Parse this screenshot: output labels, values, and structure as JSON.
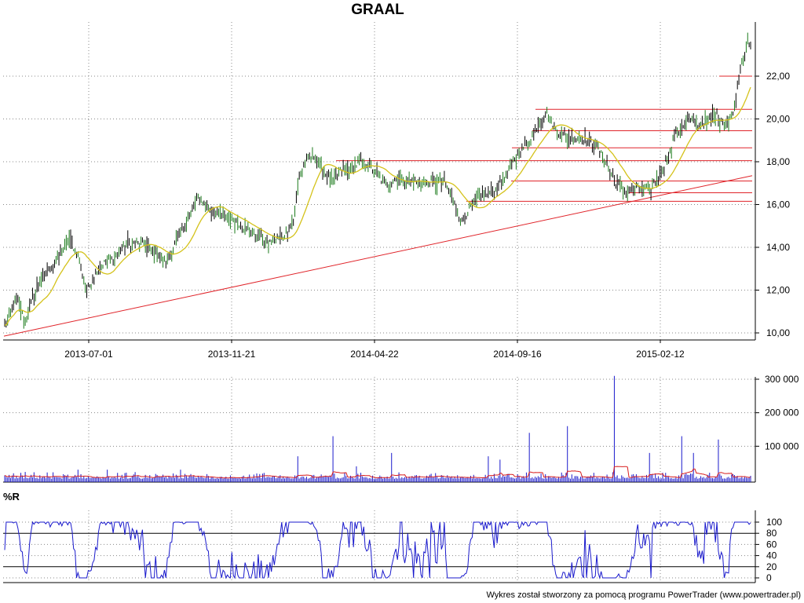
{
  "title": "GRAAL",
  "credit": "Wykres został stworzony za pomocą programu PowerTrader (www.powertrader.pl)",
  "colors": {
    "price": "#000000",
    "ma": "#d4c21a",
    "levels": "#e0242a",
    "volume": "#1a1acc",
    "volume_ma": "#d81e1e",
    "wr": "#1a1acc",
    "grid": "#888888"
  },
  "chart_data": [
    {
      "type": "line",
      "x_ticks": [
        "2013-07-01",
        "2013-11-21",
        "2014-04-22",
        "2014-09-16",
        "2015-02-12"
      ],
      "y_ticks": [
        "10,00",
        "12,00",
        "14,00",
        "16,00",
        "18,00",
        "20,00",
        "22,00"
      ],
      "ylim": [
        9.9,
        23.8
      ],
      "close_anchors": [
        [
          0,
          10.3
        ],
        [
          8,
          11.6
        ],
        [
          14,
          10.5
        ],
        [
          22,
          12.2
        ],
        [
          34,
          13.3
        ],
        [
          44,
          14.4
        ],
        [
          50,
          13.6
        ],
        [
          56,
          11.9
        ],
        [
          64,
          13.1
        ],
        [
          74,
          13.5
        ],
        [
          84,
          14.2
        ],
        [
          96,
          14.1
        ],
        [
          104,
          13.7
        ],
        [
          110,
          13.2
        ],
        [
          118,
          14.4
        ],
        [
          124,
          15.2
        ],
        [
          132,
          16.3
        ],
        [
          140,
          15.8
        ],
        [
          148,
          15.5
        ],
        [
          156,
          15.3
        ],
        [
          164,
          14.9
        ],
        [
          172,
          14.6
        ],
        [
          180,
          14.2
        ],
        [
          190,
          14.5
        ],
        [
          197,
          15.3
        ],
        [
          201,
          17.3
        ],
        [
          206,
          18.1
        ],
        [
          212,
          18.3
        ],
        [
          218,
          17.5
        ],
        [
          224,
          17.1
        ],
        [
          230,
          17.6
        ],
        [
          236,
          17.6
        ],
        [
          242,
          18.0
        ],
        [
          248,
          17.9
        ],
        [
          254,
          17.4
        ],
        [
          260,
          16.9
        ],
        [
          266,
          17.2
        ],
        [
          276,
          17.1
        ],
        [
          286,
          17.0
        ],
        [
          300,
          17.1
        ],
        [
          306,
          16.2
        ],
        [
          312,
          15.2
        ],
        [
          318,
          15.9
        ],
        [
          326,
          16.4
        ],
        [
          336,
          16.7
        ],
        [
          344,
          17.6
        ],
        [
          350,
          18.4
        ],
        [
          358,
          18.9
        ],
        [
          364,
          19.8
        ],
        [
          370,
          20.3
        ],
        [
          376,
          19.5
        ],
        [
          384,
          19.1
        ],
        [
          394,
          19.1
        ],
        [
          404,
          18.7
        ],
        [
          412,
          17.7
        ],
        [
          418,
          16.9
        ],
        [
          424,
          16.6
        ],
        [
          432,
          16.8
        ],
        [
          440,
          16.7
        ],
        [
          446,
          17.3
        ],
        [
          452,
          18.1
        ],
        [
          458,
          19.3
        ],
        [
          466,
          19.9
        ],
        [
          474,
          19.7
        ],
        [
          484,
          20.2
        ],
        [
          494,
          19.8
        ],
        [
          498,
          20.6
        ],
        [
          502,
          22.5
        ],
        [
          506,
          23.4
        ]
      ],
      "volume_ticks": [
        "100 000",
        "200 000",
        "300 000"
      ],
      "volume_ylim": [
        0,
        330000
      ],
      "volume_spikes": [
        [
          50,
          30000
        ],
        [
          70,
          30000
        ],
        [
          120,
          30000
        ],
        [
          200,
          70000
        ],
        [
          224,
          130000
        ],
        [
          240,
          40000
        ],
        [
          264,
          80000
        ],
        [
          330,
          70000
        ],
        [
          338,
          60000
        ],
        [
          358,
          140000
        ],
        [
          384,
          160000
        ],
        [
          416,
          310000
        ],
        [
          440,
          80000
        ],
        [
          462,
          130000
        ],
        [
          470,
          80000
        ],
        [
          487,
          120000
        ],
        [
          510,
          70000
        ]
      ],
      "wr_ticks": [
        "0",
        "20",
        "40",
        "60",
        "80",
        "100"
      ],
      "wr_ylim": [
        0,
        100
      ],
      "wr_reference_lines": [
        20,
        80
      ]
    }
  ],
  "panels": {
    "wr_label": "%R"
  }
}
